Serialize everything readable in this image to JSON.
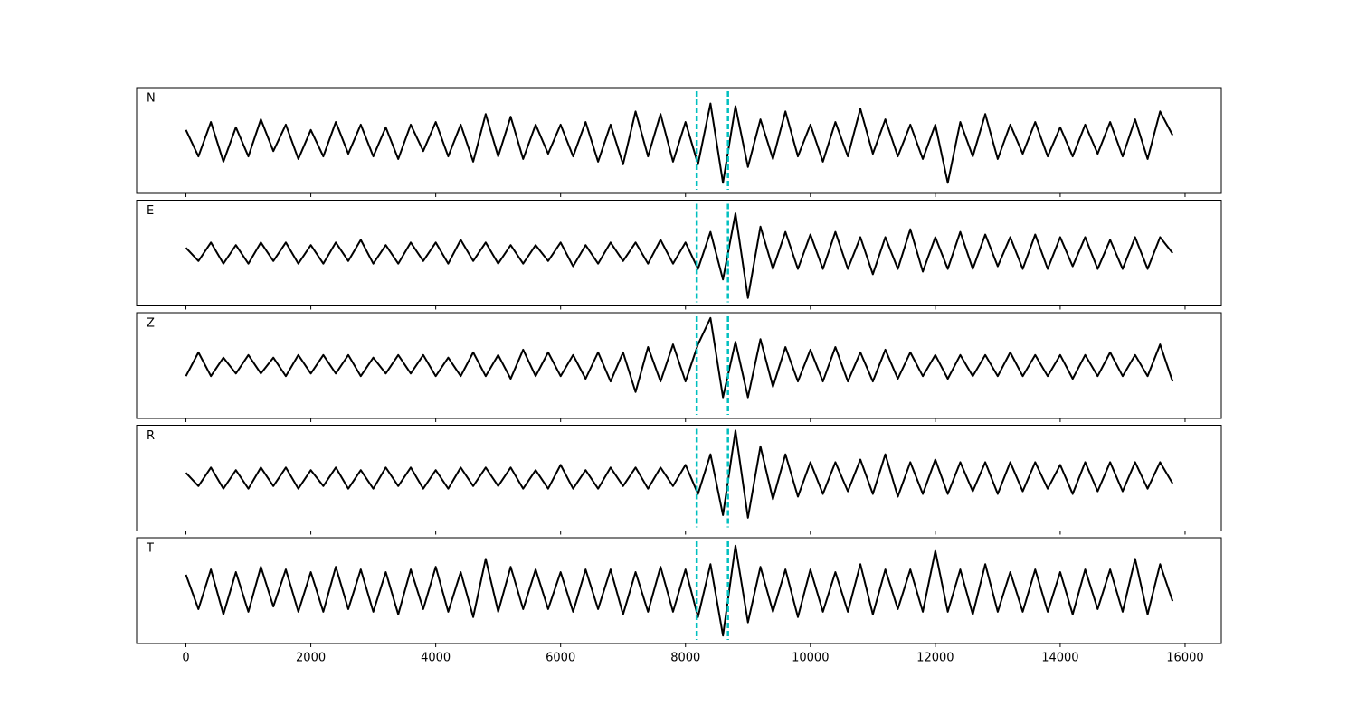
{
  "chart_data": {
    "type": "line",
    "panels": true,
    "x": [
      0,
      200,
      400,
      600,
      800,
      1000,
      1200,
      1400,
      1600,
      1800,
      2000,
      2200,
      2400,
      2600,
      2800,
      3000,
      3200,
      3400,
      3600,
      3800,
      4000,
      4200,
      4400,
      4600,
      4800,
      5000,
      5200,
      5400,
      5600,
      5800,
      6000,
      6200,
      6400,
      6600,
      6800,
      7000,
      7200,
      7400,
      7600,
      7800,
      8000,
      8200,
      8400,
      8600,
      8800,
      9000,
      9200,
      9400,
      9600,
      9800,
      10000,
      10200,
      10400,
      10600,
      10800,
      11000,
      11200,
      11400,
      11600,
      11800,
      12000,
      12200,
      12400,
      12600,
      12800,
      13000,
      13200,
      13400,
      13600,
      13800,
      14000,
      14200,
      14400,
      14600,
      14800,
      15000,
      15200,
      15400,
      15600,
      15800
    ],
    "xlim": [
      -790,
      16580
    ],
    "xticks": [
      0,
      2000,
      4000,
      6000,
      8000,
      10000,
      12000,
      14000,
      16000
    ],
    "ylim": [
      -1,
      1
    ],
    "vlines": [
      8180,
      8680
    ],
    "vline_color": "#00bfbf",
    "series": [
      {
        "name": "N",
        "color": "#000000",
        "values": [
          0.2,
          -0.3,
          0.35,
          -0.4,
          0.25,
          -0.3,
          0.4,
          -0.2,
          0.3,
          -0.35,
          0.2,
          -0.3,
          0.35,
          -0.25,
          0.3,
          -0.3,
          0.25,
          -0.35,
          0.3,
          -0.2,
          0.35,
          -0.3,
          0.3,
          -0.4,
          0.5,
          -0.3,
          0.45,
          -0.35,
          0.3,
          -0.25,
          0.3,
          -0.3,
          0.35,
          -0.4,
          0.3,
          -0.45,
          0.55,
          -0.3,
          0.5,
          -0.4,
          0.35,
          -0.45,
          0.7,
          -0.8,
          0.65,
          -0.5,
          0.4,
          -0.35,
          0.55,
          -0.3,
          0.3,
          -0.4,
          0.35,
          -0.3,
          0.6,
          -0.25,
          0.4,
          -0.3,
          0.3,
          -0.35,
          0.3,
          -0.8,
          0.35,
          -0.3,
          0.5,
          -0.35,
          0.3,
          -0.25,
          0.35,
          -0.3,
          0.25,
          -0.3,
          0.3,
          -0.25,
          0.35,
          -0.3,
          0.4,
          -0.35,
          0.55,
          0.1
        ]
      },
      {
        "name": "E",
        "color": "#000000",
        "values": [
          0.1,
          -0.15,
          0.2,
          -0.2,
          0.15,
          -0.2,
          0.2,
          -0.15,
          0.2,
          -0.2,
          0.15,
          -0.2,
          0.2,
          -0.15,
          0.25,
          -0.2,
          0.15,
          -0.2,
          0.2,
          -0.15,
          0.2,
          -0.2,
          0.25,
          -0.15,
          0.2,
          -0.2,
          0.15,
          -0.2,
          0.15,
          -0.15,
          0.2,
          -0.25,
          0.15,
          -0.2,
          0.2,
          -0.15,
          0.2,
          -0.2,
          0.25,
          -0.2,
          0.2,
          -0.3,
          0.4,
          -0.5,
          0.75,
          -0.85,
          0.5,
          -0.3,
          0.4,
          -0.3,
          0.35,
          -0.3,
          0.4,
          -0.3,
          0.3,
          -0.4,
          0.3,
          -0.3,
          0.45,
          -0.35,
          0.3,
          -0.3,
          0.4,
          -0.3,
          0.35,
          -0.25,
          0.3,
          -0.3,
          0.35,
          -0.3,
          0.3,
          -0.25,
          0.3,
          -0.3,
          0.25,
          -0.3,
          0.3,
          -0.3,
          0.3,
          0.0
        ]
      },
      {
        "name": "Z",
        "color": "#000000",
        "values": [
          -0.2,
          0.25,
          -0.2,
          0.15,
          -0.15,
          0.2,
          -0.15,
          0.15,
          -0.2,
          0.2,
          -0.15,
          0.2,
          -0.15,
          0.2,
          -0.2,
          0.15,
          -0.15,
          0.2,
          -0.15,
          0.2,
          -0.2,
          0.15,
          -0.2,
          0.25,
          -0.2,
          0.2,
          -0.25,
          0.3,
          -0.2,
          0.25,
          -0.2,
          0.2,
          -0.25,
          0.25,
          -0.3,
          0.25,
          -0.5,
          0.35,
          -0.3,
          0.4,
          -0.3,
          0.4,
          0.9,
          -0.6,
          0.45,
          -0.6,
          0.5,
          -0.4,
          0.35,
          -0.3,
          0.3,
          -0.3,
          0.35,
          -0.3,
          0.25,
          -0.3,
          0.3,
          -0.25,
          0.25,
          -0.2,
          0.2,
          -0.25,
          0.2,
          -0.2,
          0.2,
          -0.2,
          0.25,
          -0.2,
          0.2,
          -0.2,
          0.2,
          -0.25,
          0.2,
          -0.2,
          0.25,
          -0.2,
          0.2,
          -0.2,
          0.4,
          -0.3
        ]
      },
      {
        "name": "R",
        "color": "#000000",
        "values": [
          0.1,
          -0.15,
          0.2,
          -0.2,
          0.15,
          -0.2,
          0.2,
          -0.15,
          0.2,
          -0.2,
          0.15,
          -0.15,
          0.2,
          -0.2,
          0.15,
          -0.2,
          0.2,
          -0.15,
          0.2,
          -0.2,
          0.15,
          -0.2,
          0.2,
          -0.15,
          0.2,
          -0.15,
          0.2,
          -0.2,
          0.15,
          -0.2,
          0.25,
          -0.2,
          0.15,
          -0.2,
          0.2,
          -0.15,
          0.2,
          -0.2,
          0.2,
          -0.15,
          0.25,
          -0.3,
          0.45,
          -0.7,
          0.9,
          -0.75,
          0.6,
          -0.4,
          0.45,
          -0.35,
          0.3,
          -0.3,
          0.3,
          -0.25,
          0.35,
          -0.3,
          0.45,
          -0.35,
          0.3,
          -0.3,
          0.35,
          -0.3,
          0.3,
          -0.25,
          0.3,
          -0.3,
          0.3,
          -0.25,
          0.3,
          -0.2,
          0.25,
          -0.3,
          0.3,
          -0.25,
          0.3,
          -0.25,
          0.3,
          -0.2,
          0.3,
          -0.1
        ]
      },
      {
        "name": "T",
        "color": "#000000",
        "values": [
          0.3,
          -0.35,
          0.4,
          -0.45,
          0.35,
          -0.4,
          0.45,
          -0.3,
          0.4,
          -0.4,
          0.35,
          -0.4,
          0.45,
          -0.35,
          0.4,
          -0.4,
          0.35,
          -0.45,
          0.4,
          -0.35,
          0.45,
          -0.4,
          0.35,
          -0.5,
          0.6,
          -0.4,
          0.45,
          -0.35,
          0.4,
          -0.35,
          0.35,
          -0.4,
          0.4,
          -0.35,
          0.4,
          -0.45,
          0.35,
          -0.4,
          0.45,
          -0.4,
          0.4,
          -0.5,
          0.5,
          -0.85,
          0.85,
          -0.6,
          0.45,
          -0.4,
          0.4,
          -0.5,
          0.4,
          -0.4,
          0.35,
          -0.4,
          0.5,
          -0.45,
          0.4,
          -0.35,
          0.4,
          -0.4,
          0.75,
          -0.4,
          0.4,
          -0.45,
          0.5,
          -0.4,
          0.35,
          -0.4,
          0.4,
          -0.4,
          0.35,
          -0.45,
          0.4,
          -0.35,
          0.4,
          -0.4,
          0.6,
          -0.45,
          0.5,
          -0.2
        ]
      }
    ]
  }
}
